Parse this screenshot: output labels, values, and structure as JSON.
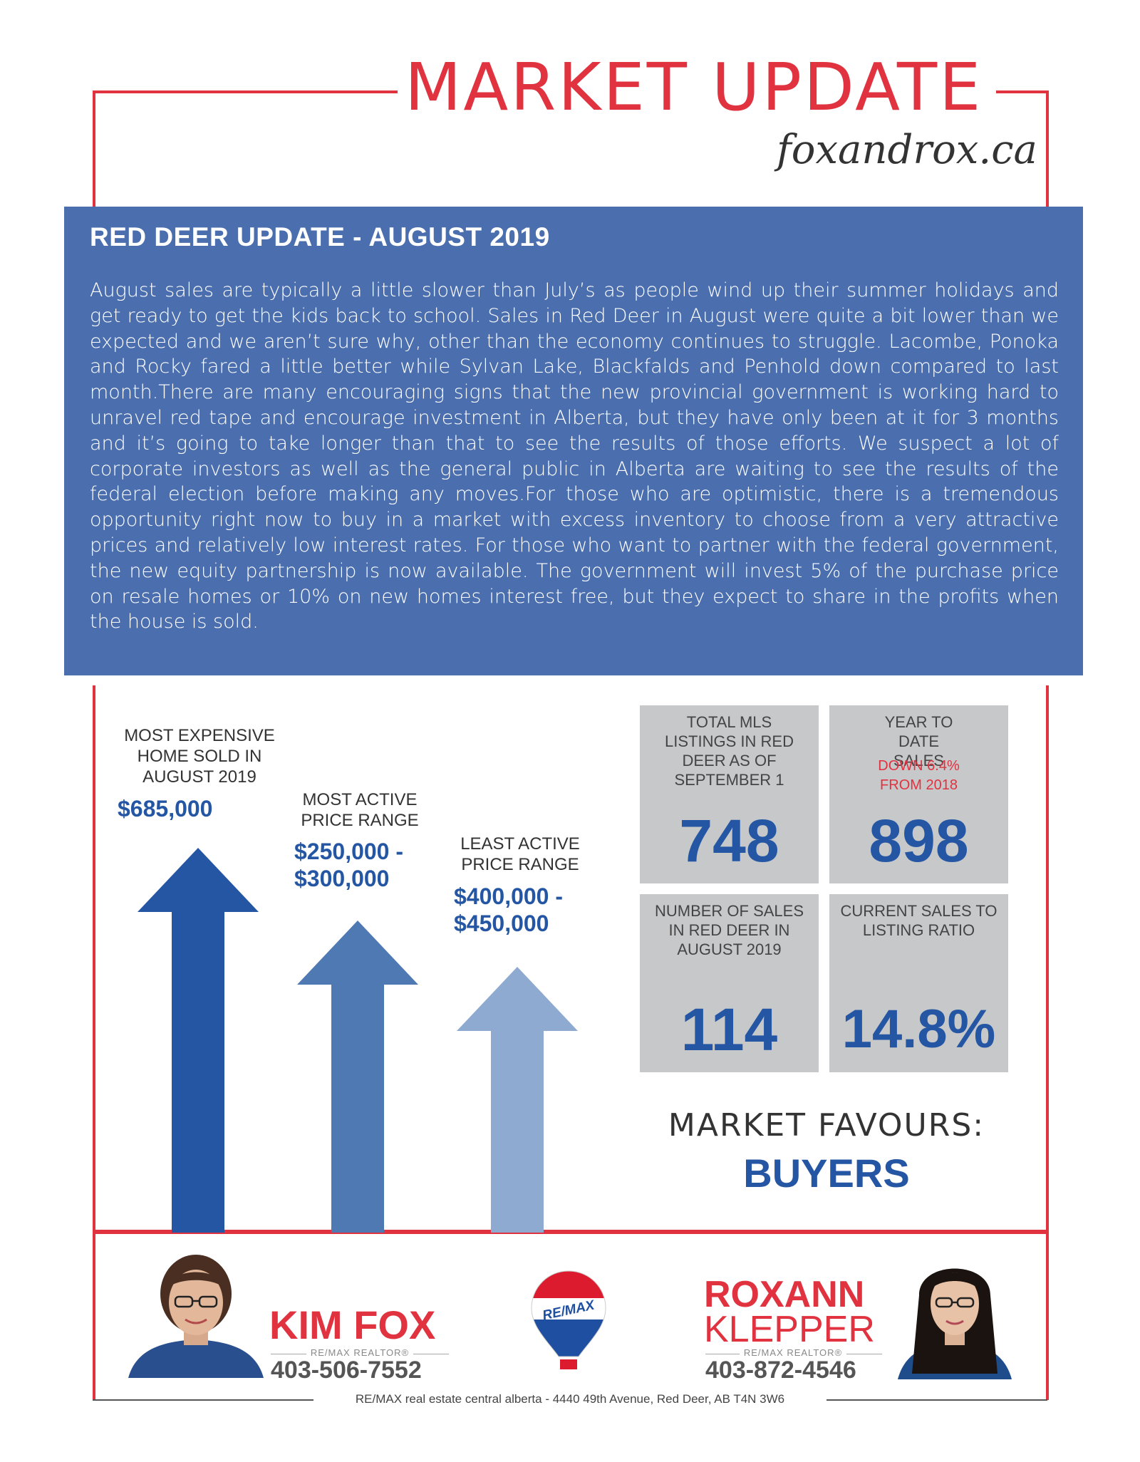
{
  "header": {
    "title": "MARKET UPDATE",
    "website": "foxandrox.ca"
  },
  "update": {
    "heading": "RED DEER UPDATE - AUGUST 2019",
    "body": "August sales are typically a little slower than July’s as people wind up their summer holidays and get ready to get the kids back to school.   Sales in Red Deer in August were quite a bit lower than we expected and we aren’t sure why, other than the economy continues to struggle. Lacombe, Ponoka and Rocky fared a little better while Sylvan Lake, Blackfalds and Penhold down compared to last month.There are many encouraging signs that the new provincial government is working hard to unravel red tape and encourage investment in Alberta, but they have only been at it for 3 months and it’s going to take longer than that to see the results of those efforts.  We suspect a lot of corporate investors as well as the general public in Alberta are waiting to see the results of the federal election before making any moves.For those who are optimistic, there is a tremendous opportunity right now to buy in a market with excess inventory to choose from a very attractive prices and relatively low interest rates.  For those who want to partner with the federal government, the new equity partnership is now available.  The government will invest 5% of the purchase price on resale homes or 10% on new homes interest free, but they expect to share in the profits when the house is sold."
  },
  "price_stats": {
    "most_expensive": {
      "label": "MOST EXPENSIVE HOME SOLD IN AUGUST 2019",
      "value": "$685,000"
    },
    "most_active": {
      "label": "MOST ACTIVE PRICE RANGE",
      "value": "$250,000 - $300,000"
    },
    "least_active": {
      "label": "LEAST ACTIVE PRICE RANGE",
      "value": "$400,000 - $450,000"
    }
  },
  "tiles": {
    "listings": {
      "label": "TOTAL MLS LISTINGS IN RED DEER AS OF SEPTEMBER 1",
      "value": "748"
    },
    "ytd": {
      "label": "YEAR TO DATE SALES",
      "note": "DOWN 6.4% FROM 2018",
      "value": "898"
    },
    "sales": {
      "label": "NUMBER OF SALES IN RED DEER IN AUGUST 2019",
      "value": "114"
    },
    "ratio": {
      "label": "CURRENT SALES TO LISTING RATIO",
      "value": "14.8%"
    }
  },
  "market": {
    "label": "MARKET FAVOURS:",
    "value": "BUYERS"
  },
  "agents": {
    "kim": {
      "name": "KIM FOX",
      "title": "RE/MAX REALTOR®",
      "phone": "403-506-7552"
    },
    "roxann": {
      "first": "ROXANN",
      "last": "KLEPPER",
      "title": "RE/MAX REALTOR®",
      "phone": "403-872-4546"
    }
  },
  "logo": {
    "text": "RE/MAX"
  },
  "footer": "RE/MAX real estate central alberta  -  4440 49th Avenue, Red Deer, AB  T4N 3W6",
  "colors": {
    "brand_red": "#e0323f",
    "brand_blue": "#2456a4",
    "panel_blue": "#4a6eae",
    "tile_gray": "#c7c8ca"
  }
}
